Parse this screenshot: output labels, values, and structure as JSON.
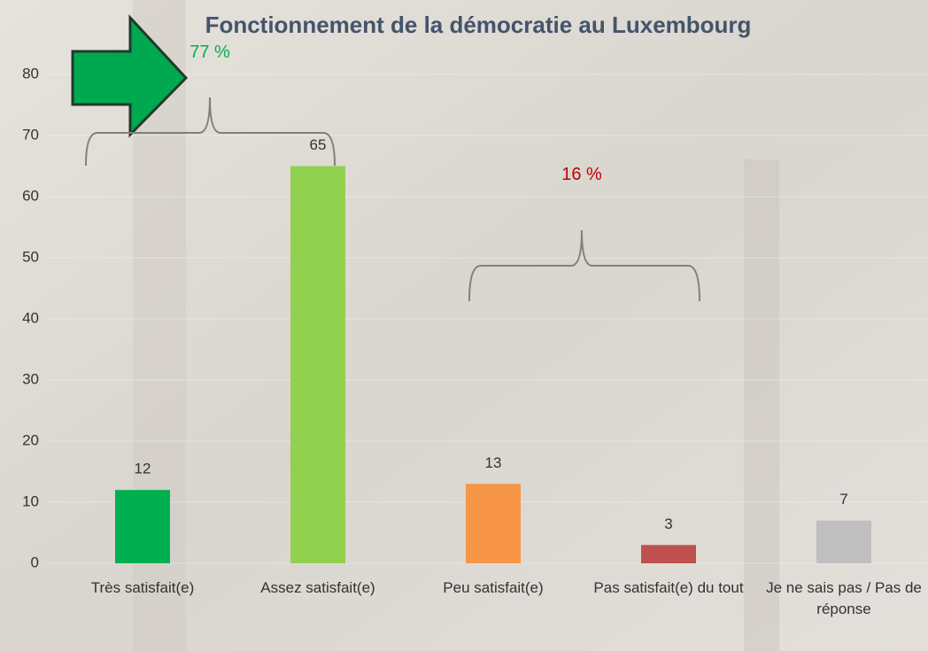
{
  "chart_data": {
    "type": "bar",
    "title": "Fonctionnement de la démocratie au Luxembourg",
    "categories": [
      "Très satisfait(e)",
      "Assez satisfait(e)",
      "Peu satisfait(e)",
      "Pas satisfait(e) du tout",
      "Je ne sais pas / Pas de réponse"
    ],
    "values": [
      12,
      65,
      13,
      3,
      7
    ],
    "colors": [
      "#00b050",
      "#92d050",
      "#f79646",
      "#c0504d",
      "#bfbfbf"
    ],
    "ylim": [
      0,
      80
    ],
    "yticks": [
      0,
      10,
      20,
      30,
      40,
      50,
      60,
      70,
      80
    ],
    "grid": true,
    "annotations": [
      {
        "text": "77 %",
        "color": "#00b050"
      },
      {
        "text": "16 %",
        "color": "#c00000"
      }
    ]
  }
}
